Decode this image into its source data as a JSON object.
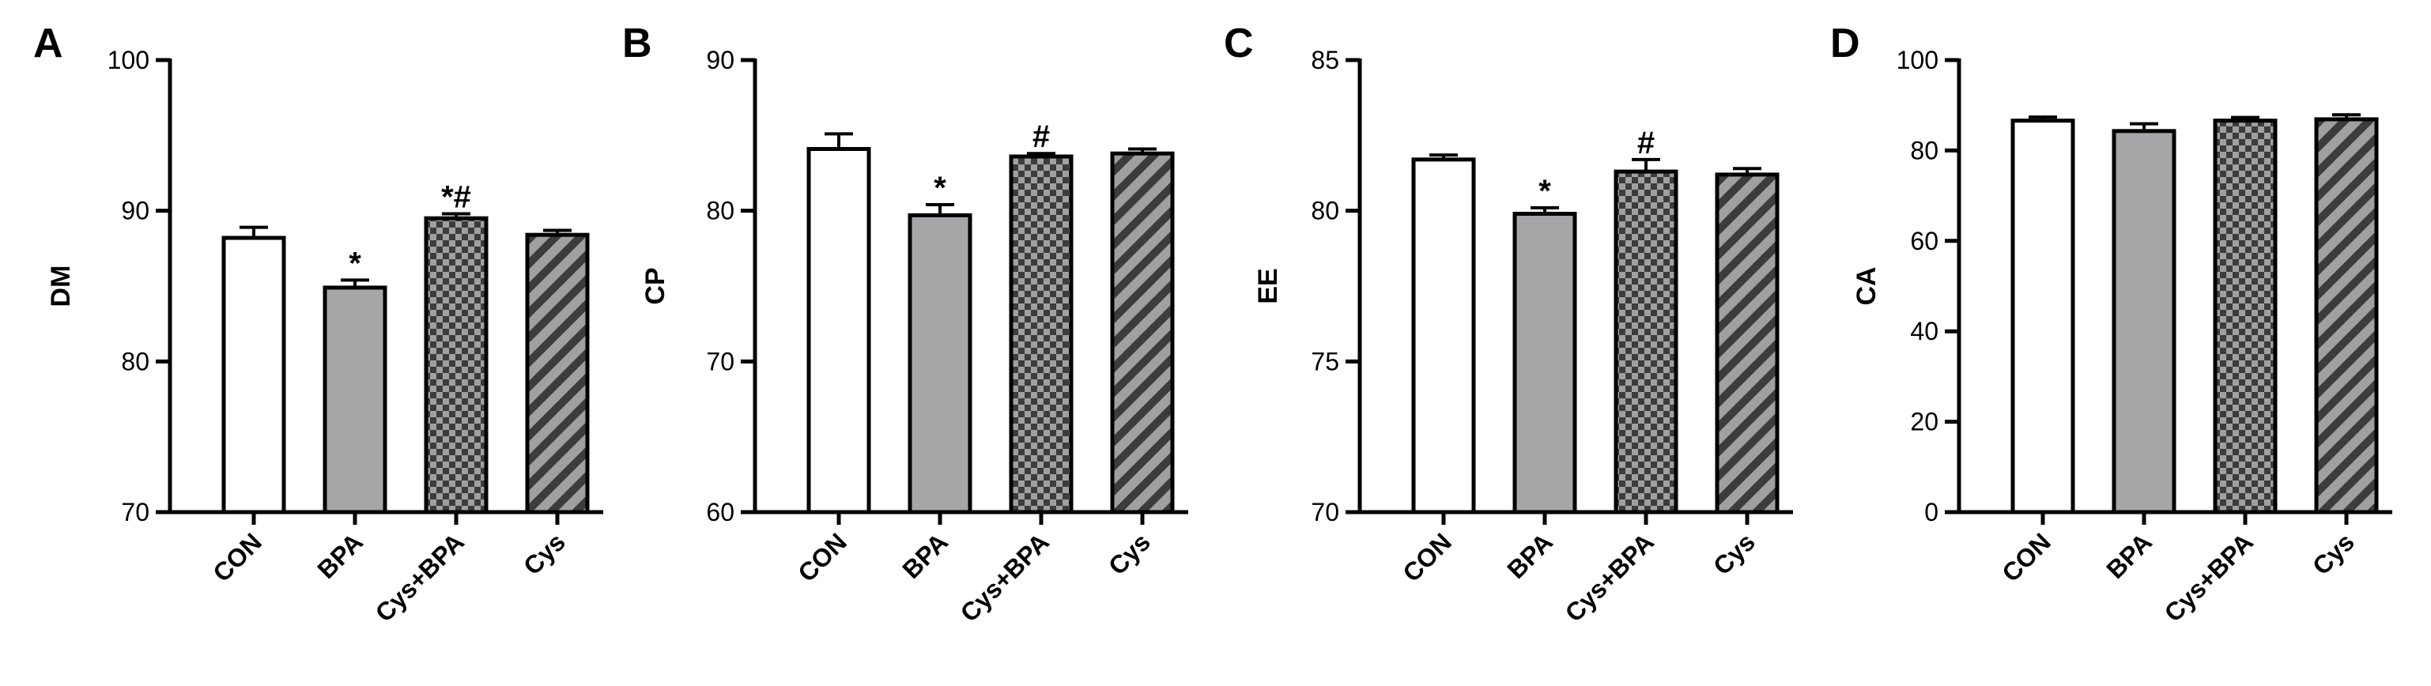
{
  "chart_data": [
    {
      "panel": "A",
      "type": "bar",
      "ylabel": "DM",
      "ylim": [
        70,
        100
      ],
      "yticks": [
        "70",
        "80",
        "90",
        "100"
      ],
      "categories": [
        "CON",
        "BPA",
        "Cys+BPA",
        "Cys"
      ],
      "values": [
        88.2,
        84.9,
        89.5,
        88.4
      ],
      "errors": [
        0.7,
        0.5,
        0.3,
        0.3
      ],
      "annotations": [
        "",
        "*",
        "*#",
        ""
      ]
    },
    {
      "panel": "B",
      "type": "bar",
      "ylabel": "CP",
      "ylim": [
        60,
        90
      ],
      "yticks": [
        "60",
        "70",
        "80",
        "90"
      ],
      "categories": [
        "CON",
        "BPA",
        "Cys+BPA",
        "Cys"
      ],
      "values": [
        84.1,
        79.7,
        83.6,
        83.8
      ],
      "errors": [
        1.0,
        0.7,
        0.2,
        0.3
      ],
      "annotations": [
        "",
        "*",
        "#",
        ""
      ]
    },
    {
      "panel": "C",
      "type": "bar",
      "ylabel": "EE",
      "ylim": [
        70,
        85
      ],
      "yticks": [
        "70",
        "75",
        "80",
        "85"
      ],
      "categories": [
        "CON",
        "BPA",
        "Cys+BPA",
        "Cys"
      ],
      "values": [
        81.7,
        79.9,
        81.3,
        81.2
      ],
      "errors": [
        0.15,
        0.2,
        0.4,
        0.2
      ],
      "annotations": [
        "",
        "*",
        "#",
        ""
      ]
    },
    {
      "panel": "D",
      "type": "bar",
      "ylabel": "CA",
      "ylim": [
        0,
        100
      ],
      "yticks": [
        "0",
        "20",
        "40",
        "60",
        "80",
        "100"
      ],
      "categories": [
        "CON",
        "BPA",
        "Cys+BPA",
        "Cys"
      ],
      "values": [
        86.6,
        84.3,
        86.6,
        86.9
      ],
      "errors": [
        0.8,
        1.6,
        0.7,
        1.0
      ],
      "annotations": [
        "",
        "",
        "",
        ""
      ]
    }
  ],
  "fills": [
    "white",
    "gray",
    "checker",
    "stripes"
  ],
  "colors": {
    "gray_bar": "#a6a6a8",
    "axis": "#000000",
    "pattern_dark": "#3c3c3c",
    "pattern_light": "#a0a0a0"
  }
}
